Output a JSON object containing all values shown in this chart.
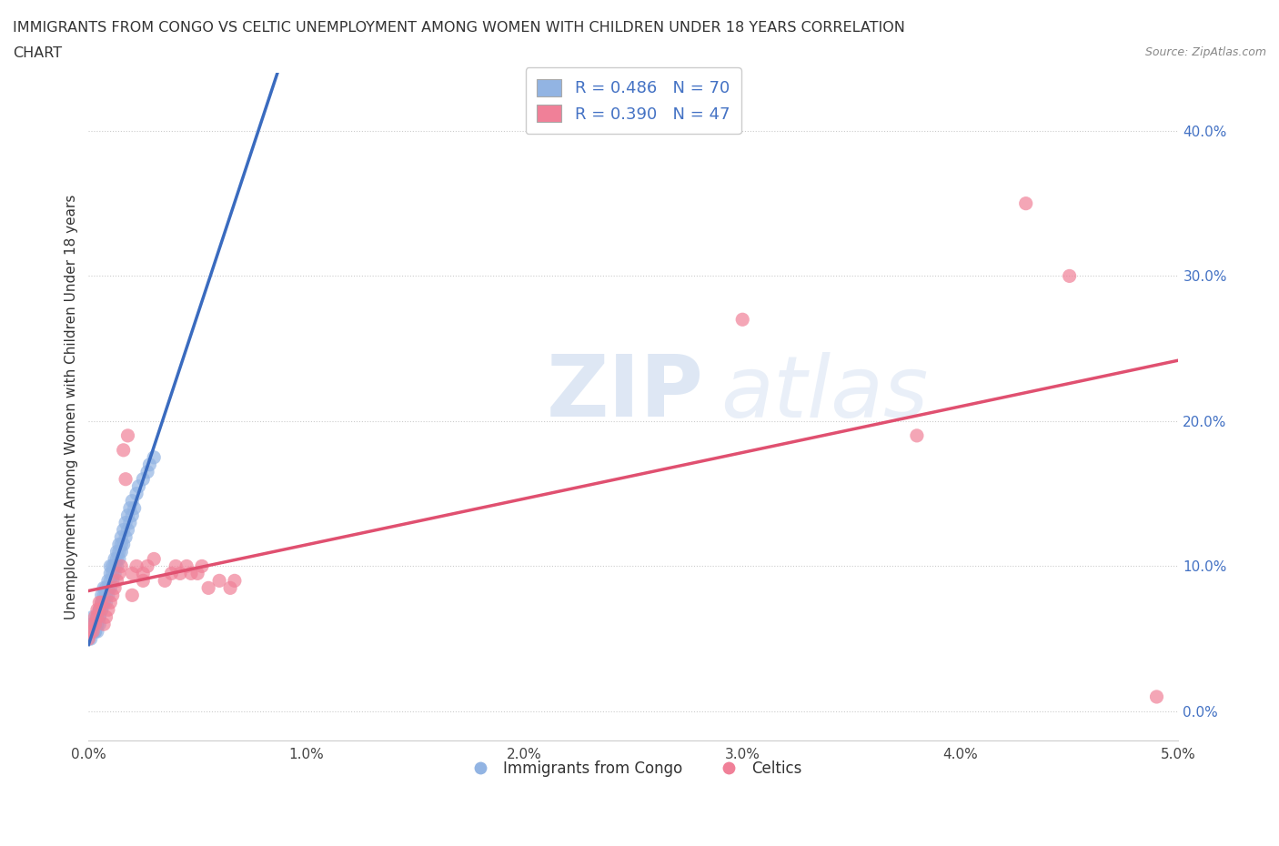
{
  "title_line1": "IMMIGRANTS FROM CONGO VS CELTIC UNEMPLOYMENT AMONG WOMEN WITH CHILDREN UNDER 18 YEARS CORRELATION",
  "title_line2": "CHART",
  "source_text": "Source: ZipAtlas.com",
  "ylabel": "Unemployment Among Women with Children Under 18 years",
  "xlim": [
    0.0,
    0.05
  ],
  "ylim": [
    -0.02,
    0.44
  ],
  "yticks": [
    0.0,
    0.1,
    0.2,
    0.3,
    0.4
  ],
  "ytick_labels": [
    "0.0%",
    "10.0%",
    "20.0%",
    "30.0%",
    "40.0%"
  ],
  "xticks": [
    0.0,
    0.01,
    0.02,
    0.03,
    0.04,
    0.05
  ],
  "xtick_labels": [
    "0.0%",
    "1.0%",
    "2.0%",
    "3.0%",
    "4.0%",
    "5.0%"
  ],
  "congo_R": 0.486,
  "congo_N": 70,
  "celtic_R": 0.39,
  "celtic_N": 47,
  "congo_color": "#92b4e3",
  "celtic_color": "#f08098",
  "trendline_congo_color": "#3a6bbf",
  "trendline_celtic_color": "#e05070",
  "watermark_zip": "ZIP",
  "watermark_atlas": "atlas",
  "background_color": "#ffffff",
  "grid_color": "#cccccc",
  "congo_x": [
    0.0,
    0.0001,
    0.0001,
    0.0002,
    0.0002,
    0.0002,
    0.0003,
    0.0003,
    0.0003,
    0.0003,
    0.0004,
    0.0004,
    0.0004,
    0.0004,
    0.0004,
    0.0005,
    0.0005,
    0.0005,
    0.0005,
    0.0005,
    0.0006,
    0.0006,
    0.0006,
    0.0006,
    0.0007,
    0.0007,
    0.0007,
    0.0007,
    0.0008,
    0.0008,
    0.0008,
    0.0009,
    0.0009,
    0.0009,
    0.001,
    0.001,
    0.001,
    0.001,
    0.0011,
    0.0011,
    0.0011,
    0.0012,
    0.0012,
    0.0012,
    0.0013,
    0.0013,
    0.0013,
    0.0014,
    0.0014,
    0.0014,
    0.0015,
    0.0015,
    0.0015,
    0.0016,
    0.0016,
    0.0017,
    0.0017,
    0.0018,
    0.0018,
    0.0019,
    0.0019,
    0.002,
    0.002,
    0.0021,
    0.0022,
    0.0023,
    0.0025,
    0.0027,
    0.0028,
    0.003
  ],
  "congo_y": [
    0.05,
    0.05,
    0.06,
    0.055,
    0.065,
    0.06,
    0.055,
    0.06,
    0.06,
    0.055,
    0.06,
    0.065,
    0.06,
    0.055,
    0.065,
    0.06,
    0.065,
    0.07,
    0.07,
    0.065,
    0.07,
    0.075,
    0.08,
    0.07,
    0.075,
    0.08,
    0.075,
    0.085,
    0.08,
    0.075,
    0.085,
    0.08,
    0.085,
    0.09,
    0.085,
    0.09,
    0.095,
    0.1,
    0.09,
    0.095,
    0.1,
    0.095,
    0.1,
    0.105,
    0.1,
    0.105,
    0.11,
    0.105,
    0.11,
    0.115,
    0.11,
    0.115,
    0.12,
    0.115,
    0.125,
    0.12,
    0.13,
    0.125,
    0.135,
    0.13,
    0.14,
    0.135,
    0.145,
    0.14,
    0.15,
    0.155,
    0.16,
    0.165,
    0.17,
    0.175
  ],
  "celtic_x": [
    0.0,
    0.0001,
    0.0002,
    0.0002,
    0.0003,
    0.0003,
    0.0004,
    0.0004,
    0.0005,
    0.0005,
    0.0006,
    0.0007,
    0.0008,
    0.0009,
    0.001,
    0.0011,
    0.0012,
    0.0013,
    0.0014,
    0.0015,
    0.0016,
    0.0017,
    0.0018,
    0.002,
    0.002,
    0.0022,
    0.0025,
    0.0025,
    0.0027,
    0.003,
    0.0035,
    0.0038,
    0.004,
    0.0042,
    0.0045,
    0.0047,
    0.005,
    0.0052,
    0.0055,
    0.006,
    0.0065,
    0.0067,
    0.03,
    0.038,
    0.043,
    0.045,
    0.049
  ],
  "celtic_y": [
    0.05,
    0.055,
    0.06,
    0.055,
    0.06,
    0.065,
    0.065,
    0.07,
    0.07,
    0.075,
    0.075,
    0.06,
    0.065,
    0.07,
    0.075,
    0.08,
    0.085,
    0.09,
    0.095,
    0.1,
    0.18,
    0.16,
    0.19,
    0.08,
    0.095,
    0.1,
    0.09,
    0.095,
    0.1,
    0.105,
    0.09,
    0.095,
    0.1,
    0.095,
    0.1,
    0.095,
    0.095,
    0.1,
    0.085,
    0.09,
    0.085,
    0.09,
    0.27,
    0.19,
    0.35,
    0.3,
    0.01
  ]
}
